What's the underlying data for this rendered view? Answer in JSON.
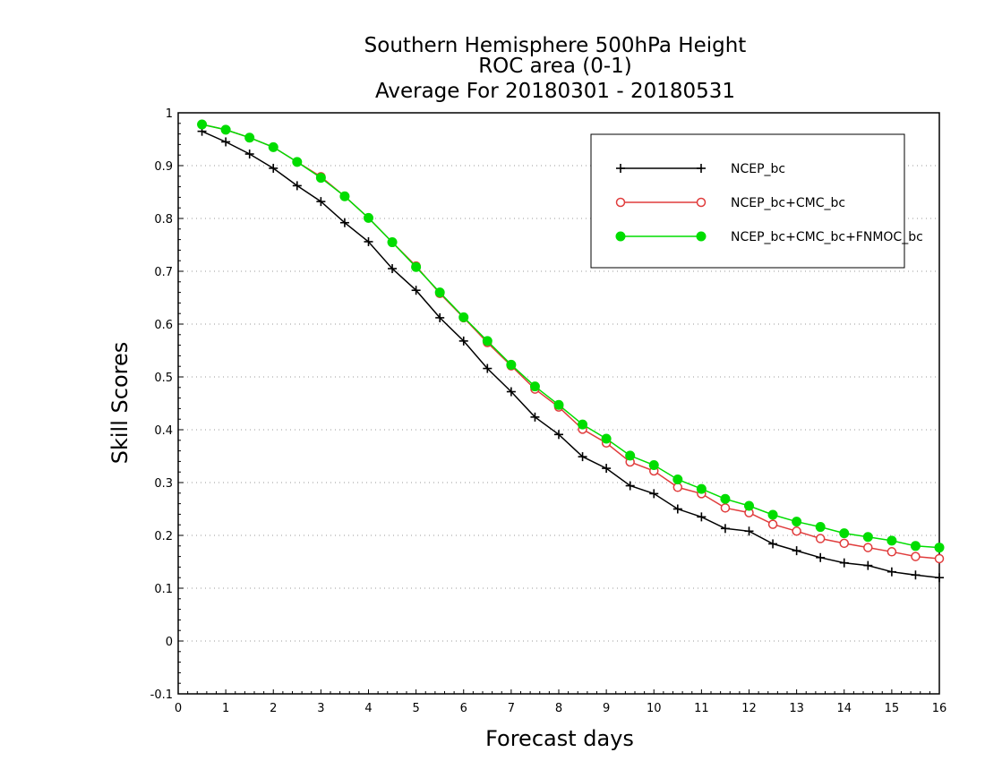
{
  "chart_data": {
    "type": "line",
    "title_lines": [
      "Southern Hemisphere 500hPa Height",
      "ROC area (0-1)",
      "Average For 20180301 - 20180531"
    ],
    "xlabel": "Forecast days",
    "ylabel": "Skill Scores",
    "xlim": [
      0,
      16
    ],
    "ylim": [
      -0.1,
      1
    ],
    "x_ticks": [
      "0",
      "1",
      "2",
      "3",
      "4",
      "5",
      "6",
      "7",
      "8",
      "9",
      "10",
      "11",
      "12",
      "13",
      "14",
      "15",
      "16"
    ],
    "y_ticks": [
      "-0.1",
      "0",
      "0.1",
      "0.2",
      "0.3",
      "0.4",
      "0.5",
      "0.6",
      "0.7",
      "0.8",
      "0.9",
      "1"
    ],
    "grid": "horizontal dotted",
    "legend_position": "top-right",
    "x": [
      0.5,
      1,
      1.5,
      2,
      2.5,
      3,
      3.5,
      4,
      4.5,
      5,
      5.5,
      6,
      6.5,
      7,
      7.5,
      8,
      8.5,
      9,
      9.5,
      10,
      10.5,
      11,
      11.5,
      12,
      12.5,
      13,
      13.5,
      14,
      14.5,
      15,
      15.5,
      16
    ],
    "series": [
      {
        "name": "NCEP_bc",
        "color": "#000000",
        "marker": "plus",
        "values": [
          0.965,
          0.945,
          0.922,
          0.895,
          0.862,
          0.832,
          0.792,
          0.756,
          0.705,
          0.664,
          0.612,
          0.568,
          0.516,
          0.472,
          0.424,
          0.391,
          0.349,
          0.327,
          0.294,
          0.279,
          0.25,
          0.235,
          0.213,
          0.208,
          0.184,
          0.171,
          0.158,
          0.148,
          0.143,
          0.131,
          0.125,
          0.12
        ]
      },
      {
        "name": "NCEP_bc+CMC_bc",
        "color": "#e03c3c",
        "marker": "open-circle",
        "values": [
          0.978,
          0.968,
          0.953,
          0.935,
          0.907,
          0.879,
          0.842,
          0.801,
          0.755,
          0.71,
          0.658,
          0.612,
          0.565,
          0.521,
          0.477,
          0.443,
          0.401,
          0.375,
          0.339,
          0.322,
          0.291,
          0.279,
          0.252,
          0.243,
          0.221,
          0.208,
          0.194,
          0.185,
          0.177,
          0.169,
          0.16,
          0.156
        ]
      },
      {
        "name": "NCEP_bc+CMC_bc+FNMOC_bc",
        "color": "#00dd00",
        "marker": "filled-circle",
        "values": [
          0.978,
          0.968,
          0.953,
          0.935,
          0.907,
          0.877,
          0.842,
          0.801,
          0.755,
          0.708,
          0.66,
          0.613,
          0.568,
          0.523,
          0.482,
          0.447,
          0.41,
          0.383,
          0.351,
          0.333,
          0.306,
          0.288,
          0.269,
          0.256,
          0.239,
          0.226,
          0.216,
          0.204,
          0.197,
          0.19,
          0.18,
          0.177
        ]
      }
    ]
  }
}
